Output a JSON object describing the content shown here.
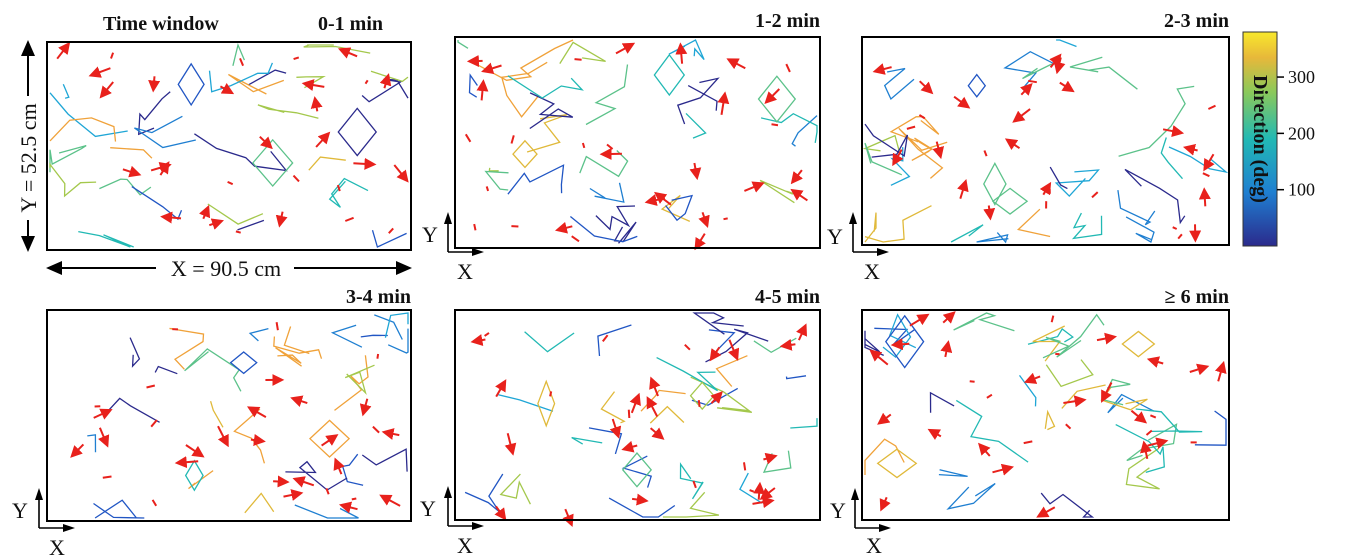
{
  "chart_data": [
    {
      "type": "contour",
      "title": "0-1 min",
      "title_prefix": "Time window",
      "dim_x": "X = 90.5 cm",
      "dim_y": "Y = 52.5 cm"
    },
    {
      "type": "contour",
      "title": "1-2 min",
      "xlabel": "X",
      "ylabel": "Y"
    },
    {
      "type": "contour",
      "title": "2-3 min",
      "xlabel": "X",
      "ylabel": "Y"
    },
    {
      "type": "contour",
      "title": "3-4 min",
      "xlabel": "X",
      "ylabel": "Y"
    },
    {
      "type": "contour",
      "title": "4-5 min",
      "xlabel": "X",
      "ylabel": "Y"
    },
    {
      "type": "contour",
      "title": "≥ 6 min",
      "xlabel": "X",
      "ylabel": "Y"
    }
  ],
  "colorbar": {
    "label": "Direction (deg)",
    "ticks": [
      100,
      200,
      300
    ],
    "range": [
      0,
      380
    ],
    "colors": [
      "#2b2a8c",
      "#1f7fd1",
      "#22b9b4",
      "#8bc95a",
      "#e7b83a",
      "#f8e82c"
    ]
  },
  "colors": {
    "arrow": "#e8211c",
    "frame": "#000000"
  }
}
